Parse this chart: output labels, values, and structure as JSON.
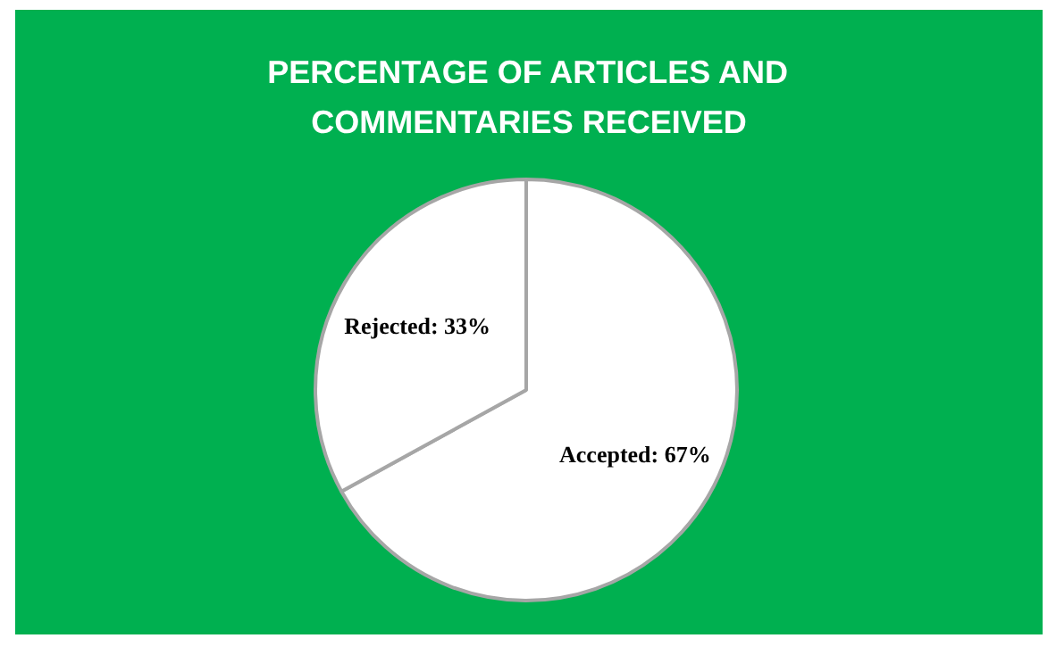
{
  "chart_data": {
    "type": "pie",
    "title": "PERCENTAGE OF ARTICLES AND COMMENTARIES RECEIVED",
    "categories": [
      "Accepted",
      "Rejected"
    ],
    "values": [
      67,
      33
    ],
    "colors": [
      "#ffffff",
      "#ffffff"
    ],
    "value_labels": [
      "67%",
      "33%"
    ]
  }
}
